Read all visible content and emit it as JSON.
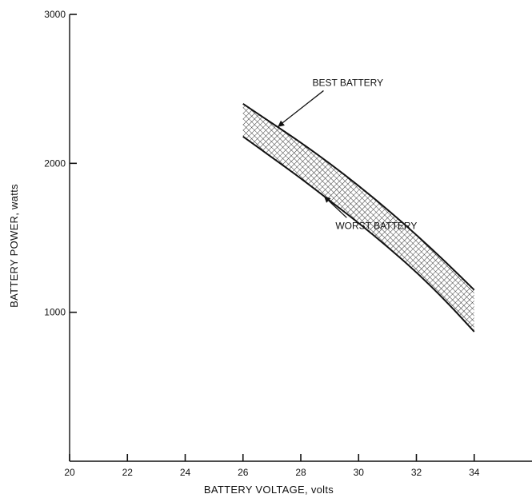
{
  "chart_data": {
    "type": "area",
    "title": "",
    "xlabel": "BATTERY VOLTAGE, volts",
    "ylabel": "BATTERY POWER, watts",
    "xlim": [
      20,
      36
    ],
    "ylim": [
      0,
      3000
    ],
    "x_ticks": [
      20,
      22,
      24,
      26,
      28,
      30,
      32,
      34
    ],
    "y_ticks": [
      1000,
      2000,
      3000
    ],
    "grid": false,
    "series": [
      {
        "name": "BEST BATTERY",
        "x": [
          26,
          27,
          28,
          29,
          30,
          31,
          32,
          33,
          34
        ],
        "y": [
          2400,
          2270,
          2140,
          2000,
          1850,
          1690,
          1520,
          1340,
          1150
        ]
      },
      {
        "name": "WORST BATTERY",
        "x": [
          26,
          27,
          28,
          29,
          30,
          31,
          32,
          33,
          34
        ],
        "y": [
          2180,
          2040,
          1900,
          1750,
          1600,
          1440,
          1270,
          1080,
          870
        ]
      }
    ],
    "annotations": [
      {
        "text": "BEST BATTERY",
        "series": "BEST BATTERY",
        "arrow_to_x": 27.2,
        "text_x": 28.4,
        "text_y": 2520
      },
      {
        "text": "WORST BATTERY",
        "series": "WORST BATTERY",
        "arrow_to_x": 28.8,
        "text_x": 29.2,
        "text_y": 1560
      }
    ],
    "colors": {
      "ink": "#111111",
      "hatch": "#222222"
    }
  }
}
